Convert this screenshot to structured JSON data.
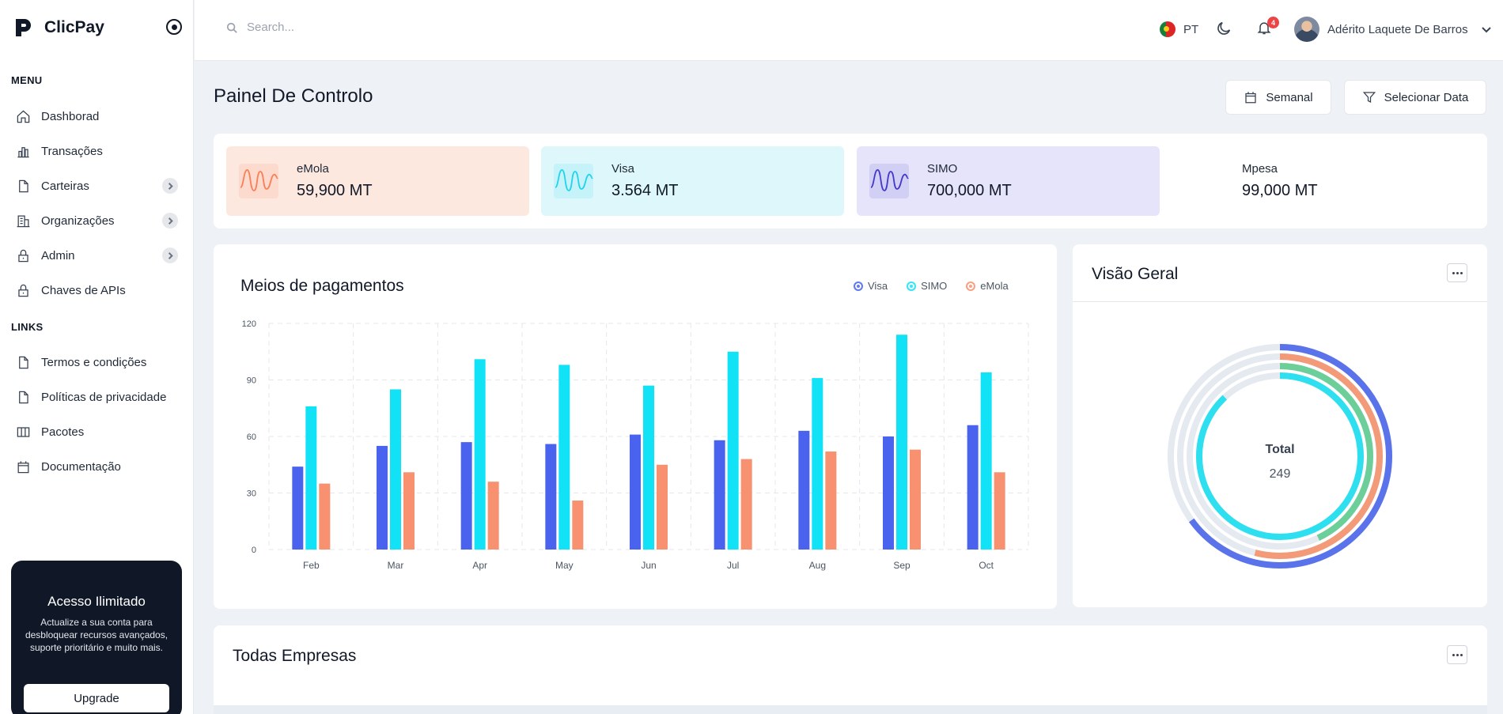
{
  "brand": {
    "name": "ClicPay"
  },
  "sidebar": {
    "menu_label": "MENU",
    "links_label": "LINKS",
    "menu": [
      {
        "label": "Dashborad",
        "icon": "home-icon"
      },
      {
        "label": "Transações",
        "icon": "bar-chart-icon"
      },
      {
        "label": "Carteiras",
        "icon": "file-icon",
        "expandable": true
      },
      {
        "label": "Organizações",
        "icon": "building-icon",
        "expandable": true
      },
      {
        "label": "Admin",
        "icon": "lock-icon",
        "expandable": true
      },
      {
        "label": "Chaves de APIs",
        "icon": "lock-icon"
      }
    ],
    "links": [
      {
        "label": "Termos e condições",
        "icon": "file-icon"
      },
      {
        "label": "Políticas de privacidade",
        "icon": "file-icon"
      },
      {
        "label": "Pacotes",
        "icon": "columns-icon"
      },
      {
        "label": "Documentação",
        "icon": "calendar-icon"
      }
    ],
    "promo": {
      "title": "Acesso Ilimitado",
      "text": "Actualize a sua conta para desbloquear recursos avançados, suporte prioritário e muito mais.",
      "button": "Upgrade"
    }
  },
  "header": {
    "search_placeholder": "Search...",
    "language": "PT",
    "notifications_count": "4",
    "user_name": "Adérito Laquete De Barros"
  },
  "page": {
    "title": "Painel De Controlo",
    "weekly_button": "Semanal",
    "date_button": "Selecionar Data"
  },
  "stats": [
    {
      "name": "eMola",
      "value": "59,900 MT",
      "color": "#f97f56",
      "bg": "#fde8df"
    },
    {
      "name": "Visa",
      "value": "3.564 MT",
      "color": "#22d3ee",
      "bg": "#ddf7fb"
    },
    {
      "name": "SIMO",
      "value": "700,000 MT",
      "color": "#4338ca",
      "bg": "#e6e4fb"
    },
    {
      "name": "Mpesa",
      "value": "99,000 MT",
      "color": "#111827",
      "bg": "#ffffff"
    }
  ],
  "payments_panel": {
    "title": "Meios de pagamentos"
  },
  "overview_panel": {
    "title": "Visão Geral",
    "center_label": "Total",
    "center_value": "249"
  },
  "companies_panel": {
    "title": "Todas Empresas"
  },
  "chart_data": {
    "type": "bar",
    "categories": [
      "Feb",
      "Mar",
      "Apr",
      "May",
      "Jun",
      "Jul",
      "Aug",
      "Sep",
      "Oct"
    ],
    "series": [
      {
        "name": "Visa",
        "color": "#4a63ee",
        "values": [
          44,
          55,
          57,
          56,
          61,
          58,
          63,
          60,
          66
        ]
      },
      {
        "name": "SIMO",
        "color": "#11e2f5",
        "values": [
          76,
          85,
          101,
          98,
          87,
          105,
          91,
          114,
          94
        ]
      },
      {
        "name": "eMola",
        "color": "#f79170",
        "values": [
          35,
          41,
          36,
          26,
          45,
          48,
          52,
          53,
          41
        ]
      }
    ],
    "yticks": [
      0,
      30,
      60,
      90,
      120
    ],
    "ylim": [
      0,
      120
    ],
    "grid": true,
    "legend": "top-right"
  },
  "radial_data": {
    "type": "radial-bar",
    "rings": [
      {
        "color": "#5b73ea",
        "fraction": 0.65
      },
      {
        "color": "#f39a78",
        "fraction": 0.54
      },
      {
        "color": "#6ccf9a",
        "fraction": 0.43
      },
      {
        "color": "#2ee0ef",
        "fraction": 0.88
      }
    ],
    "track_color": "#e5e9f0"
  }
}
